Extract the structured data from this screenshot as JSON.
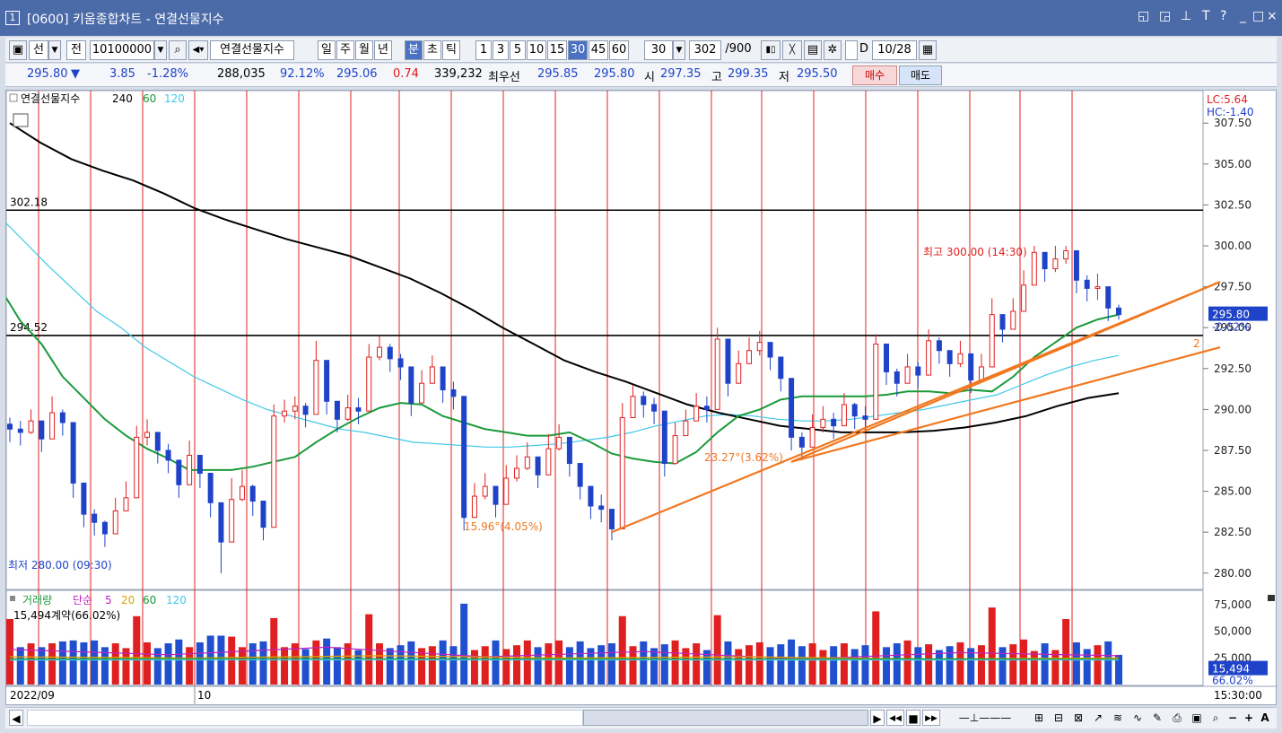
{
  "titlebar": {
    "window_number": "1",
    "title": "[0600] 키움종합차트 - 연결선물지수",
    "close_label": "×",
    "right_icons": [
      "restore-icon",
      "window-icon",
      "pin-icon",
      "font-icon",
      "help-icon",
      "minimize-icon",
      "maximize-icon",
      "close-icon"
    ],
    "right_glyphs": [
      "◱",
      "◲",
      "ᚁ",
      "T",
      "?",
      "_",
      "□",
      "×"
    ]
  },
  "toolbar": {
    "futures_label": "선",
    "jeon_label": "전",
    "code_value": "10100000",
    "name_value": "연결선물지수",
    "periods": [
      "일",
      "주",
      "월",
      "년",
      "분",
      "초",
      "틱"
    ],
    "selected_period": "분",
    "intervals": [
      "1",
      "3",
      "5",
      "10",
      "15",
      "30",
      "45",
      "60"
    ],
    "selected_interval": "30",
    "interval_select": "30",
    "count_value": "302",
    "count_total": "/900",
    "date_value": "10/28",
    "d_label": "D"
  },
  "quote": {
    "price": "295.80",
    "direction_icon": "▼",
    "change": "3.85",
    "change_rate": "-1.28%",
    "volume": "288,035",
    "vol_ratio": "92.12%",
    "theory_price": "295.06",
    "basis": "0.74",
    "open_interest": "339,232",
    "best_label": "최우선",
    "ask": "295.85",
    "bid": "295.80",
    "open_label": "시",
    "open": "297.35",
    "high_label": "고",
    "high": "299.35",
    "low_label": "저",
    "low": "295.50",
    "buy_label": "매수",
    "sell_label": "매도"
  },
  "chart_data": {
    "type": "candlestick",
    "title": "연결선물지수",
    "ma_periods": [
      "240",
      "60",
      "120"
    ],
    "ma_colors": {
      "ma240": "#000000",
      "ma60": "#1a9a3a",
      "ma120": "#3fc8e8"
    },
    "price_axis": [
      "307.50",
      "305.00",
      "302.50",
      "300.00",
      "297.50",
      "295.00",
      "292.50",
      "290.00",
      "287.50",
      "285.00",
      "282.50",
      "280.00"
    ],
    "ylim": [
      279,
      308.5
    ],
    "lc_label": "LC:5.64",
    "hc_label": "HC:-1.40",
    "current_price_label": "295.80",
    "current_change_label": "-0.02%",
    "hlines": [
      {
        "value": 302.18,
        "label": "302.18"
      },
      {
        "value": 294.52,
        "label": "294.52"
      }
    ],
    "high_annotation": "최고 300.00 (14:30)",
    "low_annotation": "최저 280.00 (09:30)",
    "trend_labels": [
      "15.96°(4.05%)",
      "23.27°(3.62%)",
      "2"
    ],
    "x_labels": [
      "2022/09",
      "10"
    ],
    "close_series": [
      288.8,
      288.6,
      289.3,
      288.2,
      289.8,
      289.2,
      285.5,
      283.6,
      283.1,
      282.4,
      283.8,
      284.6,
      288.3,
      288.6,
      287.5,
      286.9,
      285.4,
      287.2,
      286.1,
      284.3,
      281.9,
      284.5,
      285.3,
      284.4,
      282.8,
      289.6,
      289.9,
      290.2,
      289.7,
      293.0,
      290.5,
      289.4,
      290.1,
      289.9,
      293.2,
      293.8,
      293.1,
      292.6,
      290.4,
      291.6,
      292.6,
      291.2,
      290.8,
      283.4,
      284.7,
      285.3,
      284.2,
      285.8,
      286.4,
      287.1,
      286.0,
      287.6,
      288.3,
      286.7,
      285.3,
      284.1,
      283.9,
      282.7,
      289.5,
      290.8,
      290.3,
      289.9,
      286.7,
      288.4,
      289.3,
      290.2,
      290.0,
      294.3,
      291.6,
      292.8,
      293.6,
      294.1,
      293.2,
      291.9,
      288.3,
      287.7,
      288.9,
      289.4,
      289.0,
      290.3,
      289.6,
      289.4,
      294.0,
      292.3,
      291.6,
      292.6,
      292.1,
      294.2,
      293.6,
      292.8,
      293.4,
      291.8,
      292.6,
      295.8,
      294.9,
      296.0,
      297.6,
      299.6,
      298.6,
      299.2,
      299.7,
      297.9,
      297.4,
      297.5,
      296.2,
      295.8
    ],
    "high_series": [
      289.5,
      289.3,
      290.0,
      289.2,
      290.8,
      290.0,
      287.0,
      284.6,
      283.9,
      283.2,
      284.6,
      285.6,
      289.0,
      289.4,
      288.4,
      287.9,
      286.4,
      288.1,
      287.0,
      285.5,
      282.8,
      285.8,
      286.3,
      285.4,
      283.7,
      290.3,
      290.6,
      290.8,
      290.4,
      294.2,
      291.5,
      290.2,
      290.9,
      290.7,
      294.0,
      294.5,
      294.0,
      293.4,
      291.2,
      292.4,
      293.3,
      292.0,
      291.7,
      285.0,
      285.5,
      286.1,
      285.2,
      286.6,
      287.2,
      288.0,
      286.9,
      288.5,
      289.1,
      287.5,
      286.3,
      285.1,
      284.8,
      283.5,
      290.4,
      291.5,
      291.1,
      290.7,
      287.5,
      289.2,
      290.0,
      291.0,
      290.8,
      295.0,
      292.5,
      293.6,
      294.4,
      294.8,
      294.1,
      292.7,
      289.2,
      288.6,
      289.7,
      290.2,
      289.8,
      291.0,
      290.4,
      290.2,
      294.6,
      293.2,
      292.5,
      293.4,
      292.9,
      294.9,
      294.4,
      293.6,
      294.2,
      292.7,
      293.4,
      296.8,
      295.8,
      296.8,
      298.5,
      300.0,
      299.4,
      300.0,
      300.0,
      298.7,
      298.2,
      298.3,
      297.0,
      296.4
    ],
    "low_series": [
      288.0,
      287.8,
      288.5,
      287.4,
      289.0,
      288.4,
      284.6,
      282.8,
      282.3,
      281.6,
      283.0,
      283.8,
      287.6,
      287.8,
      286.7,
      286.1,
      284.6,
      286.4,
      285.2,
      283.4,
      280.0,
      283.5,
      284.4,
      283.5,
      282.0,
      288.8,
      289.2,
      289.4,
      288.9,
      292.2,
      289.7,
      288.6,
      289.3,
      289.1,
      292.4,
      293.0,
      292.3,
      291.8,
      289.6,
      290.8,
      291.9,
      290.4,
      290.0,
      282.6,
      283.9,
      284.5,
      283.4,
      285.0,
      285.6,
      286.3,
      285.2,
      286.8,
      287.5,
      285.9,
      284.5,
      283.3,
      283.1,
      282.0,
      288.7,
      290.0,
      289.5,
      289.1,
      285.9,
      287.6,
      288.5,
      289.4,
      289.2,
      293.5,
      290.8,
      292.0,
      292.8,
      293.3,
      292.4,
      291.1,
      287.5,
      286.9,
      288.1,
      288.6,
      288.2,
      289.5,
      288.8,
      288.6,
      293.2,
      291.5,
      290.8,
      291.8,
      291.3,
      293.4,
      292.8,
      292.0,
      292.6,
      291.0,
      291.8,
      295.0,
      294.1,
      295.2,
      296.8,
      298.8,
      297.8,
      298.4,
      298.9,
      297.1,
      296.6,
      296.7,
      295.4,
      295.5
    ],
    "ma60_series": [
      297.5,
      295.4,
      294.0,
      292.0,
      290.7,
      289.4,
      288.4,
      287.6,
      287.0,
      286.3,
      286.3,
      286.3,
      286.5,
      286.8,
      287.1,
      288.0,
      288.8,
      289.5,
      290.1,
      290.4,
      290.3,
      289.6,
      289.2,
      288.8,
      288.6,
      288.4,
      288.4,
      288.6,
      288.0,
      287.3,
      287.0,
      286.8,
      286.7,
      287.4,
      288.6,
      289.6,
      290.0,
      290.6,
      290.8,
      290.8,
      290.8,
      290.8,
      290.9,
      291.1,
      291.1,
      291.0,
      291.2,
      291.1,
      292.0,
      293.2,
      294.1,
      295.0,
      295.5,
      295.8
    ],
    "ma120_series": [
      301.8,
      300.3,
      298.8,
      297.4,
      296.0,
      295.0,
      293.8,
      292.9,
      292.0,
      291.3,
      290.6,
      290.0,
      289.6,
      289.2,
      288.8,
      288.6,
      288.3,
      288.0,
      287.9,
      287.8,
      287.7,
      287.7,
      287.8,
      287.9,
      288.1,
      288.3,
      288.6,
      289.0,
      289.3,
      289.6,
      289.7,
      289.6,
      289.4,
      289.3,
      289.3,
      289.4,
      289.6,
      289.8,
      290.0,
      290.3,
      290.6,
      290.9,
      291.5,
      292.1,
      292.6,
      293.0,
      293.3
    ],
    "ma240_series": [
      307.5,
      306.3,
      305.3,
      304.6,
      304.0,
      303.2,
      302.3,
      301.6,
      301.0,
      300.4,
      299.9,
      299.4,
      298.7,
      298.0,
      297.1,
      296.1,
      295.0,
      294.0,
      293.0,
      292.3,
      291.7,
      291.0,
      290.3,
      289.8,
      289.4,
      289.0,
      288.8,
      288.6,
      288.6,
      288.6,
      288.7,
      288.9,
      289.2,
      289.6,
      290.2,
      290.7,
      291.0
    ],
    "volume_axis": [
      "75,000",
      "50,000",
      "25,000"
    ],
    "volume_label": "거래량",
    "volume_ma_label": "단순",
    "volume_ma_periods": [
      "5",
      "20",
      "60",
      "120"
    ],
    "volume_summary": "15,494계약(66.02%)",
    "volume_current": "15,494",
    "volume_ratio": "66.02%",
    "time_label": "15:30:00"
  },
  "bottombar": {
    "scroll_left": "◀",
    "controls": [
      "▶",
      "◀◀",
      "■",
      "▶▶"
    ],
    "zoom_out_label": "−",
    "zoom_in_label": "+",
    "font_label": "A"
  }
}
